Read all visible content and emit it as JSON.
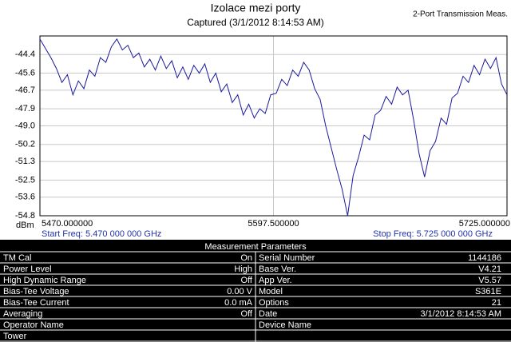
{
  "chart_data": {
    "type": "line",
    "title": "Izolace mezi porty",
    "subtitle": "Captured (3/1/2012 8:14:53 AM)",
    "corner_label": "2-Port Transmission Meas.",
    "y_label": "dBm",
    "start_label": "Start Freq: 5.470 000 000 GHz",
    "stop_label": "Stop Freq: 5.725 000 000 GHz",
    "x": [
      5470,
      5473,
      5476,
      5479,
      5482,
      5485,
      5488,
      5491,
      5494,
      5497,
      5500,
      5503,
      5506,
      5509,
      5512,
      5515,
      5518,
      5521,
      5524,
      5527,
      5530,
      5533,
      5536,
      5539,
      5542,
      5545,
      5548,
      5551,
      5554,
      5557,
      5560,
      5563,
      5566,
      5569,
      5572,
      5575,
      5578,
      5581,
      5584,
      5587,
      5590,
      5593,
      5596,
      5599,
      5602,
      5605,
      5608,
      5611,
      5614,
      5617,
      5620,
      5623,
      5626,
      5629,
      5632,
      5635,
      5638,
      5641,
      5644,
      5647,
      5650,
      5653,
      5656,
      5659,
      5662,
      5665,
      5668,
      5671,
      5674,
      5677,
      5680,
      5683,
      5686,
      5689,
      5692,
      5695,
      5698,
      5701,
      5704,
      5707,
      5710,
      5713,
      5716,
      5719,
      5722,
      5725
    ],
    "series": [
      {
        "color": "#1a1a9c",
        "values": [
          -43.4,
          -44.0,
          -44.6,
          -45.3,
          -46.2,
          -45.7,
          -47.0,
          -46.1,
          -46.6,
          -45.4,
          -45.8,
          -44.6,
          -44.9,
          -43.9,
          -43.4,
          -44.1,
          -43.8,
          -44.6,
          -44.3,
          -45.2,
          -44.7,
          -45.4,
          -44.5,
          -45.3,
          -44.8,
          -45.9,
          -45.2,
          -46.0,
          -45.1,
          -45.6,
          -45.0,
          -46.2,
          -45.6,
          -46.8,
          -46.3,
          -47.5,
          -47.0,
          -48.3,
          -47.6,
          -48.5,
          -47.9,
          -48.2,
          -47.0,
          -46.9,
          -46.0,
          -46.4,
          -45.4,
          -45.8,
          -44.9,
          -45.4,
          -46.6,
          -47.3,
          -49.0,
          -50.4,
          -51.8,
          -53.1,
          -54.8,
          -52.2,
          -51.0,
          -49.6,
          -49.9,
          -48.3,
          -48.0,
          -47.1,
          -47.6,
          -46.5,
          -47.0,
          -46.7,
          -48.6,
          -50.8,
          -52.3,
          -50.6,
          -50.0,
          -48.5,
          -48.9,
          -47.2,
          -46.9,
          -45.8,
          -46.2,
          -45.1,
          -45.7,
          -44.7,
          -45.3,
          -44.6,
          -46.3,
          -47.0
        ]
      }
    ],
    "xlim": [
      5470,
      5725
    ],
    "xticks": [
      {
        "value": 5470,
        "label": "5470.000000"
      },
      {
        "value": 5597.5,
        "label": "5597.500000"
      },
      {
        "value": 5725,
        "label": "5725.000000"
      }
    ],
    "ylim": [
      -54.8,
      -43.2
    ],
    "yticks": [
      -44.4,
      -45.6,
      -46.7,
      -47.9,
      {
        "value": -49,
        "label": "-49.0"
      },
      -50.2,
      -51.3,
      -52.5,
      -53.6,
      -54.8
    ],
    "grid": true
  },
  "measurement_table": {
    "title": "Measurement Parameters",
    "rows": [
      [
        "TM Cal",
        "On",
        "Serial Number",
        "1144186"
      ],
      [
        "Power Level",
        "High",
        "Base Ver.",
        "V4.21"
      ],
      [
        "High Dynamic Range",
        "Off",
        "App Ver.",
        "V5.57"
      ],
      [
        "Bias-Tee Voltage",
        "0.00 V",
        "Model",
        "S361E"
      ],
      [
        "Bias-Tee Current",
        "0.0 mA",
        "Options",
        "21"
      ],
      [
        "Averaging",
        "Off",
        "Date",
        "3/1/2012 8:14:53 AM"
      ],
      [
        "Operator Name",
        null,
        "Device Name",
        null
      ],
      [
        "Tower",
        null,
        null,
        null
      ]
    ]
  }
}
